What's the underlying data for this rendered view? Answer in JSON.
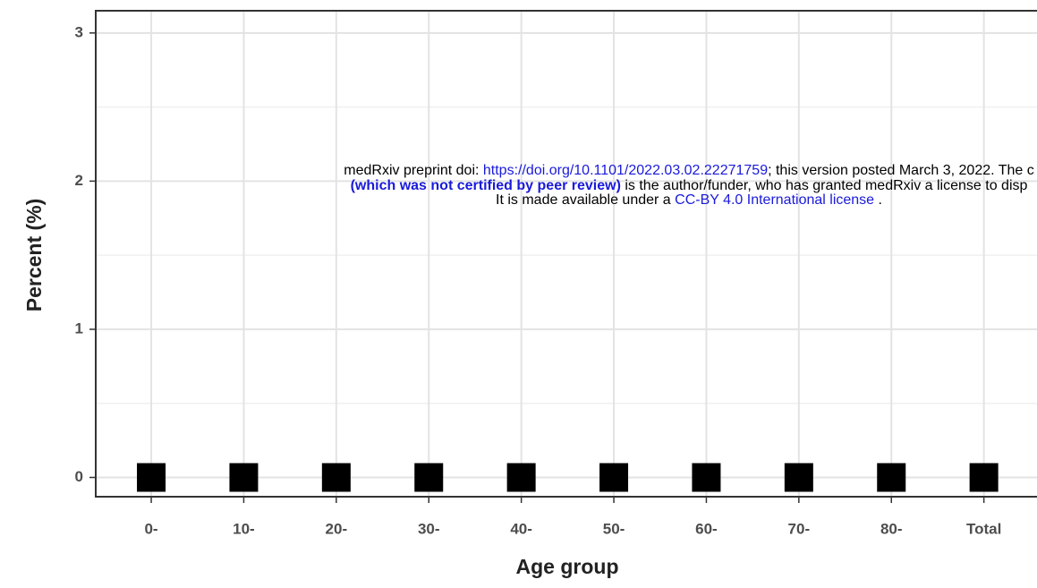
{
  "chart_data": {
    "type": "scatter",
    "ylabel": "Percent (%)",
    "xlabel": "Age group",
    "categories": [
      "0-",
      "10-",
      "20-",
      "30-",
      "40-",
      "50-",
      "60-",
      "70-",
      "80-",
      "Total"
    ],
    "values": [
      0,
      0,
      0,
      0,
      0,
      0,
      0,
      0,
      0,
      0
    ],
    "color": "#000000",
    "ylim": [
      -0.13,
      3.15
    ],
    "yticks": [
      0,
      1,
      2,
      3
    ],
    "minor_yticks": [
      0.5,
      1.5,
      2.5
    ],
    "grid": true,
    "annotation": [
      [
        {
          "text": "medRxiv preprint doi: ",
          "style": "plain"
        },
        {
          "text": "https://doi.org/10.1101/2022.03.02.22271759",
          "style": "link"
        },
        {
          "text": "; this version posted March 3, 2022. The c",
          "style": "plain"
        }
      ],
      [
        {
          "text": "(which was not certified by peer review)",
          "style": "bold-link"
        },
        {
          "text": " is the author/funder, who has granted medRxiv a license to disp",
          "style": "plain"
        }
      ],
      [
        {
          "text": "It is made available under a ",
          "style": "plain"
        },
        {
          "text": "CC-BY 4.0 International license",
          "style": "link"
        },
        {
          "text": " .",
          "style": "plain"
        }
      ]
    ]
  }
}
